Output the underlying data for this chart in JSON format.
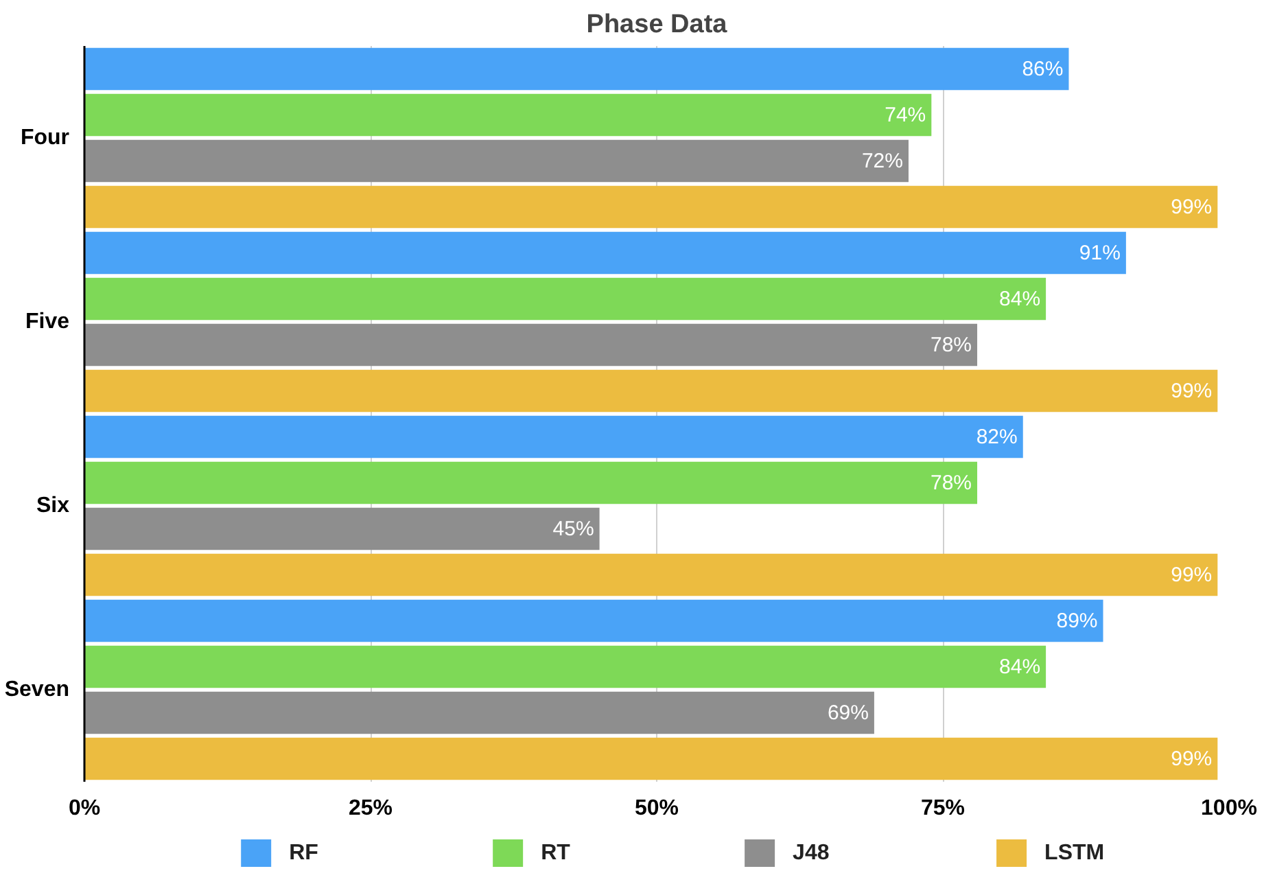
{
  "chart_data": {
    "type": "bar",
    "orientation": "horizontal",
    "title": "Phase Data",
    "categories": [
      "Four",
      "Five",
      "Six",
      "Seven"
    ],
    "series": [
      {
        "name": "RF",
        "color": "#4aa3f7",
        "values": [
          86,
          91,
          82,
          89
        ],
        "value_labels": [
          "86%",
          "91%",
          "82%",
          "89%"
        ]
      },
      {
        "name": "RT",
        "color": "#7ed957",
        "values": [
          74,
          84,
          78,
          84
        ],
        "value_labels": [
          "74%",
          "84%",
          "78%",
          "84%"
        ]
      },
      {
        "name": "J48",
        "color": "#8e8e8e",
        "values": [
          72,
          78,
          45,
          69
        ],
        "value_labels": [
          "72%",
          "78%",
          "45%",
          "69%"
        ]
      },
      {
        "name": "LSTM",
        "color": "#ecbc40",
        "values": [
          99,
          99,
          99,
          99
        ],
        "value_labels": [
          "99%",
          "99%",
          "99%",
          "99%"
        ]
      }
    ],
    "xlim": [
      0,
      100
    ],
    "xticks": [
      {
        "value": 0,
        "label": "0%"
      },
      {
        "value": 25,
        "label": "25%"
      },
      {
        "value": 50,
        "label": "50%"
      },
      {
        "value": 75,
        "label": "75%"
      },
      {
        "value": 100,
        "label": "100%"
      }
    ],
    "grid": "x",
    "legend": "bottom"
  }
}
